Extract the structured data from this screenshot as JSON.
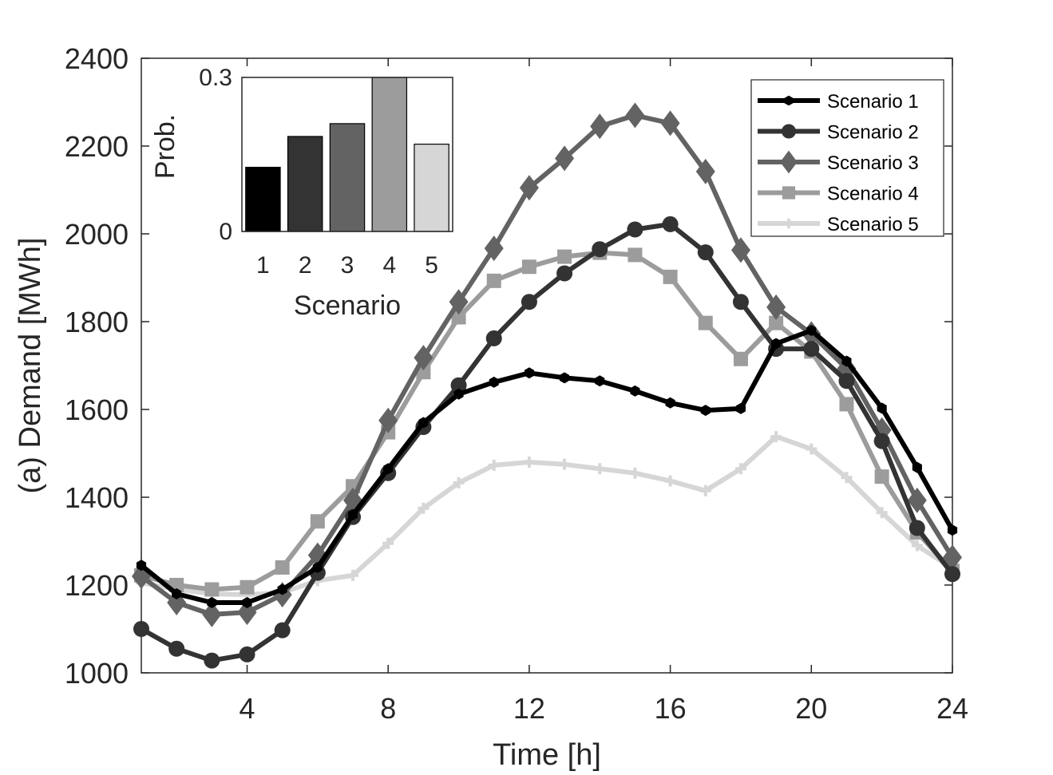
{
  "chart_data": [
    {
      "type": "line",
      "title": "",
      "xlabel": "Time [h]",
      "ylabel": "(a) Demand [MWh]",
      "xlim": [
        1,
        24
      ],
      "ylim": [
        1000,
        2400
      ],
      "xticks": [
        4,
        8,
        12,
        16,
        20,
        24
      ],
      "yticks": [
        1000,
        1200,
        1400,
        1600,
        1800,
        2000,
        2200,
        2400
      ],
      "legend_position": "top-right",
      "x": [
        1,
        2,
        3,
        4,
        5,
        6,
        7,
        8,
        9,
        10,
        11,
        12,
        13,
        14,
        15,
        16,
        17,
        18,
        19,
        20,
        21,
        22,
        23,
        24
      ],
      "series": [
        {
          "name": "Scenario 1",
          "color": "#000000",
          "marker": "hexagon",
          "values": [
            1245,
            1180,
            1160,
            1160,
            1190,
            1240,
            1360,
            1465,
            1570,
            1635,
            1662,
            1683,
            1672,
            1665,
            1642,
            1615,
            1598,
            1602,
            1750,
            1780,
            1710,
            1603,
            1468,
            1325
          ]
        },
        {
          "name": "Scenario 2",
          "color": "#333333",
          "marker": "circle",
          "values": [
            1100,
            1055,
            1028,
            1042,
            1097,
            1228,
            1355,
            1455,
            1560,
            1655,
            1762,
            1845,
            1910,
            1965,
            2010,
            2022,
            1958,
            1845,
            1738,
            1738,
            1665,
            1528,
            1330,
            1225
          ]
        },
        {
          "name": "Scenario 3",
          "color": "#636363",
          "marker": "diamond",
          "values": [
            1220,
            1160,
            1133,
            1138,
            1178,
            1268,
            1393,
            1575,
            1718,
            1845,
            1967,
            2105,
            2172,
            2245,
            2270,
            2252,
            2142,
            1963,
            1833,
            1772,
            1693,
            1553,
            1393,
            1263
          ]
        },
        {
          "name": "Scenario 4",
          "color": "#9c9c9c",
          "marker": "square",
          "values": [
            1222,
            1200,
            1190,
            1195,
            1240,
            1345,
            1425,
            1548,
            1685,
            1810,
            1893,
            1925,
            1948,
            1957,
            1952,
            1902,
            1797,
            1715,
            1797,
            1732,
            1612,
            1447,
            1320,
            1232
          ]
        },
        {
          "name": "Scenario 5",
          "color": "#d6d6d6",
          "marker": "plus",
          "values": [
            1205,
            1190,
            1180,
            1178,
            1183,
            1210,
            1222,
            1295,
            1375,
            1433,
            1473,
            1480,
            1475,
            1465,
            1455,
            1437,
            1415,
            1465,
            1538,
            1510,
            1445,
            1365,
            1290,
            1238
          ]
        }
      ]
    },
    {
      "type": "bar",
      "title": "",
      "xlabel": "Scenario",
      "ylabel": "Prob.",
      "categories": [
        "1",
        "2",
        "3",
        "4",
        "5"
      ],
      "values": [
        0.125,
        0.185,
        0.21,
        0.31,
        0.17
      ],
      "colors": [
        "#000000",
        "#333333",
        "#636363",
        "#9c9c9c",
        "#d6d6d6"
      ],
      "ylim": [
        0,
        0.3
      ],
      "yticks": [
        0,
        0.3
      ],
      "ytick_labels": [
        "0",
        "0.3"
      ]
    }
  ]
}
